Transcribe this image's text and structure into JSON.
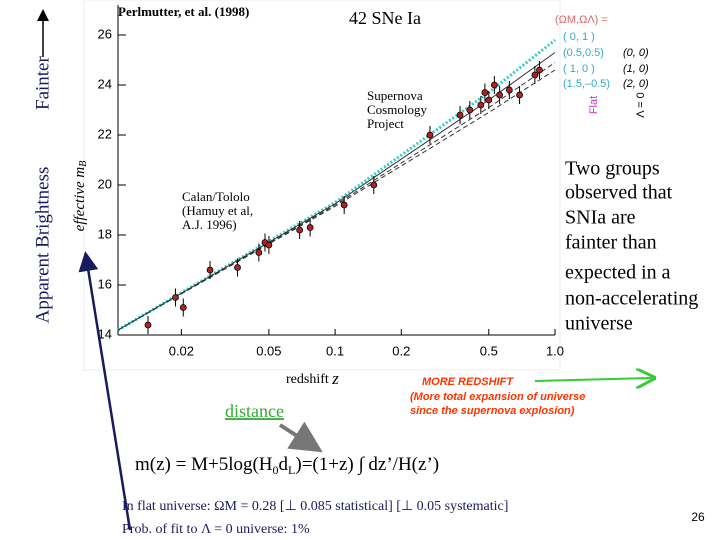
{
  "chart_data": {
    "type": "scatter",
    "title": "42 SNe Ia",
    "credit": "Perlmutter, et al. (1998)",
    "x_label": "redshift",
    "x_symbol": "z",
    "y_label": "effective m",
    "y_sub": "B",
    "annotations": [
      "Supernova",
      "Cosmology",
      "Project",
      "Calan/Tololo",
      "(Hamuy et al,",
      "A.J. 1996)"
    ],
    "xlog": true,
    "xlim": [
      0.0103,
      1.0
    ],
    "xticks": [
      0.02,
      0.05,
      0.1,
      0.2,
      0.5,
      {
        "value": 1,
        "label": "1.0"
      }
    ],
    "ylim": [
      14,
      27.2
    ],
    "yticks": [
      14,
      16,
      18,
      20,
      22,
      24,
      26
    ],
    "points": {
      "color": "#b22222",
      "x": [
        0.0141,
        0.0188,
        0.0204,
        0.027,
        0.036,
        0.045,
        0.048,
        0.05,
        0.069,
        0.077,
        0.11,
        0.15,
        0.27,
        0.37,
        0.41,
        0.46,
        0.48,
        0.5,
        0.53,
        0.56,
        0.62,
        0.69,
        0.81,
        0.85
      ],
      "values": [
        14.4,
        15.5,
        15.1,
        16.6,
        16.7,
        17.3,
        17.7,
        17.6,
        18.2,
        18.3,
        19.2,
        20.0,
        22.0,
        22.8,
        23.0,
        23.2,
        23.7,
        23.4,
        24.0,
        23.6,
        23.8,
        23.6,
        24.4,
        24.6
      ]
    },
    "models": [
      {
        "color": "#33cccc",
        "x": [
          0.0103,
          0.1,
          0.5,
          1.0
        ],
        "values": [
          14.2,
          19.3,
          23.7,
          25.8
        ]
      },
      {
        "color": "#333333",
        "x": [
          0.0103,
          0.1,
          0.5,
          1.0
        ],
        "values": [
          14.2,
          19.25,
          23.4,
          25.3
        ]
      },
      {
        "color": "#333333",
        "x": [
          0.0103,
          0.1,
          0.5,
          1.0
        ],
        "values": [
          14.2,
          19.2,
          23.1,
          24.9
        ]
      },
      {
        "color": "#333333",
        "x": [
          0.0103,
          0.1,
          0.5,
          1.0
        ],
        "values": [
          14.2,
          19.15,
          22.9,
          24.6
        ]
      }
    ],
    "legend": {
      "header": "(ΩM,ΩΛ) =",
      "flat": [
        "( 0,   1 )",
        "(0.5,0.5)",
        "( 1,   0 )",
        "(1.5,–0.5)"
      ],
      "open": [
        "(0, 0)",
        "(1, 0)",
        "(2, 0)"
      ],
      "flat_label": "Flat",
      "lambda_label": "Λ = 0"
    }
  },
  "side_text": [
    "Two groups",
    "observed that",
    "SNIa are",
    "fainter than",
    "expected in a",
    "non-accelerating",
    "universe"
  ],
  "y_axis_note": "Apparent Brightness",
  "fainter": "Fainter",
  "redshift_note": {
    "title": "MORE REDSHIFT",
    "lines": [
      "(More total expansion of universe",
      "since the supernova explosion)"
    ]
  },
  "distance": "distance",
  "formula": [
    "m(z) = M+5log(H",
    "0",
    "d",
    "L",
    ")=(1+z) ∫ dz’/H(z’)"
  ],
  "results": [
    "In flat universe:   ΩM = 0.28 [⊥ 0.085 statistical] [⊥ 0.05 systematic]",
    "Prob. of fit to Λ = 0 universe:  1%"
  ],
  "slide_number": "26"
}
